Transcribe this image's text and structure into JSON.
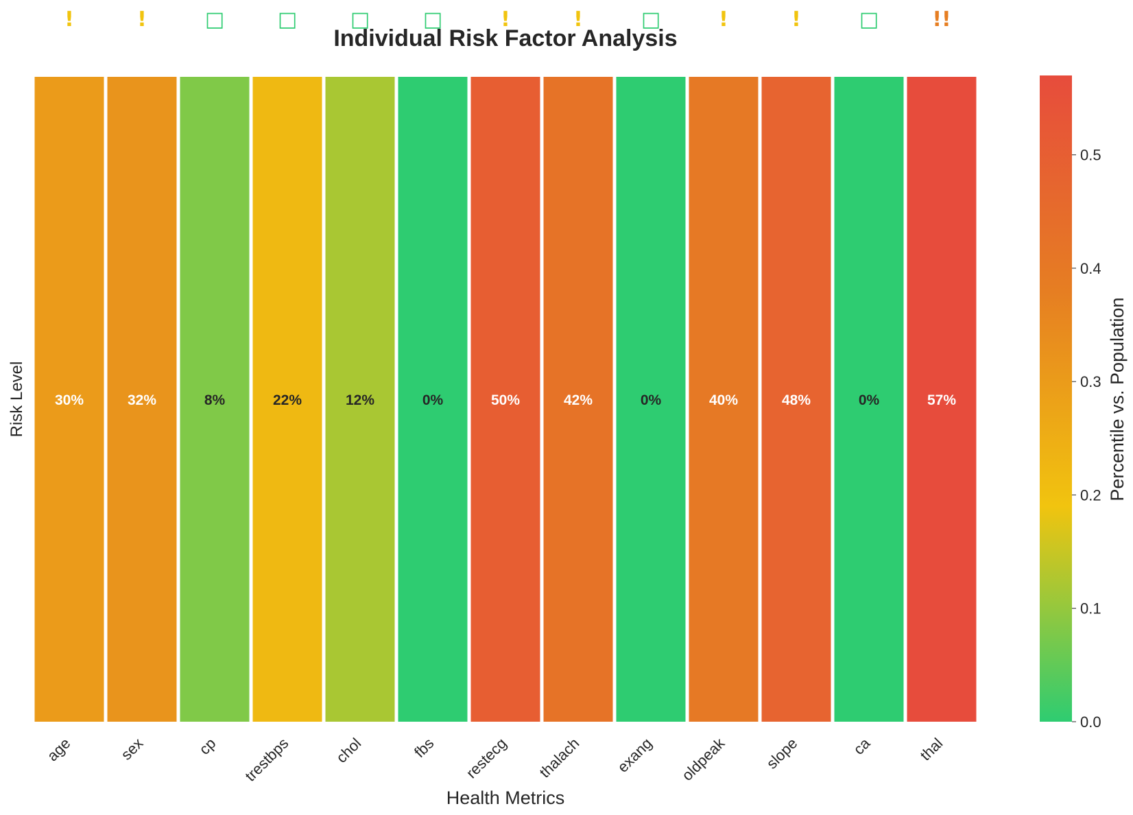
{
  "chart_data": {
    "type": "heatmap",
    "title": "Individual Risk Factor Analysis",
    "xlabel": "Health Metrics",
    "ylabel": "Risk Level",
    "colorbar_label": "Percentile vs. Population",
    "colorbar_range": [
      0.0,
      0.57
    ],
    "colorbar_ticks": [
      "0.0",
      "0.1",
      "0.2",
      "0.3",
      "0.4",
      "0.5"
    ],
    "colormap": [
      "#2ecc71",
      "#f1c40f",
      "#e67e22",
      "#e74c3c"
    ],
    "categories": [
      "age",
      "sex",
      "cp",
      "trestbps",
      "chol",
      "fbs",
      "restecg",
      "thalach",
      "exang",
      "oldpeak",
      "slope",
      "ca",
      "thal"
    ],
    "values": [
      0.3,
      0.32,
      0.08,
      0.22,
      0.12,
      0.0,
      0.5,
      0.42,
      0.0,
      0.4,
      0.48,
      0.0,
      0.57
    ],
    "value_labels": [
      "30%",
      "32%",
      "8%",
      "22%",
      "12%",
      "0%",
      "50%",
      "42%",
      "0%",
      "40%",
      "48%",
      "0%",
      "57%"
    ],
    "markers": [
      "!",
      "!",
      "□",
      "□",
      "□",
      "□",
      "!",
      "!",
      "□",
      "!",
      "!",
      "□",
      "!!"
    ],
    "marker_colors": [
      "#f1c40f",
      "#f1c40f",
      "#2ecc71",
      "#2ecc71",
      "#2ecc71",
      "#2ecc71",
      "#f1c40f",
      "#f1c40f",
      "#2ecc71",
      "#f1c40f",
      "#f1c40f",
      "#2ecc71",
      "#e67e22"
    ],
    "grid": false
  }
}
